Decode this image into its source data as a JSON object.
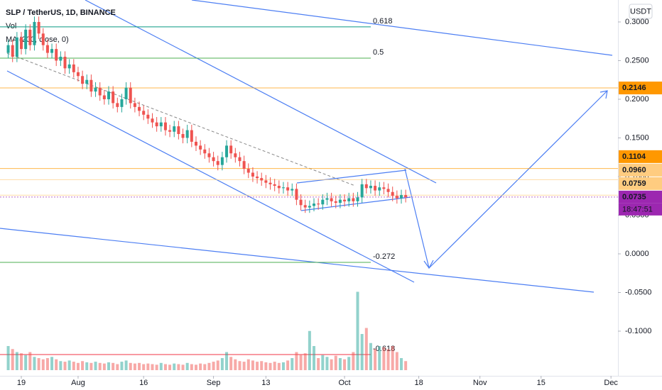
{
  "chart_data": {
    "type": "candlestick",
    "title": "SLP / TetherUS, 1D, BINANCE",
    "indicators": [
      "Vol",
      "MA (200, close, 0)"
    ],
    "currency": "USDT",
    "countdown": "18:47:51",
    "x": [
      -3,
      -2,
      -1,
      0,
      1,
      2,
      3,
      4,
      5,
      6,
      7,
      8,
      9,
      10,
      11,
      12,
      13,
      14,
      15,
      16,
      17,
      18,
      19,
      20,
      21,
      22,
      23,
      24,
      25,
      26,
      27,
      28,
      29,
      30,
      31,
      32,
      33,
      34,
      35,
      36,
      37,
      38,
      39,
      40,
      41,
      42,
      43,
      44,
      45,
      46,
      47,
      48,
      49,
      50,
      51,
      52,
      53,
      54,
      55,
      56,
      57,
      58,
      59,
      60,
      61,
      62,
      63,
      64,
      65,
      66,
      67,
      68,
      69,
      70,
      71,
      72,
      73,
      74,
      75,
      76,
      77,
      78,
      79,
      80,
      81,
      82,
      83,
      84,
      85,
      86,
      87,
      88
    ],
    "open": [
      0.26,
      0.27,
      0.255,
      0.28,
      0.265,
      0.29,
      0.27,
      0.3,
      0.285,
      0.27,
      0.26,
      0.265,
      0.25,
      0.255,
      0.24,
      0.245,
      0.235,
      0.23,
      0.22,
      0.225,
      0.21,
      0.215,
      0.205,
      0.2,
      0.21,
      0.195,
      0.19,
      0.2,
      0.215,
      0.195,
      0.19,
      0.185,
      0.18,
      0.175,
      0.17,
      0.165,
      0.17,
      0.16,
      0.158,
      0.165,
      0.155,
      0.15,
      0.16,
      0.145,
      0.14,
      0.135,
      0.13,
      0.125,
      0.12,
      0.115,
      0.125,
      0.14,
      0.13,
      0.125,
      0.12,
      0.11,
      0.105,
      0.1,
      0.098,
      0.095,
      0.092,
      0.09,
      0.088,
      0.085,
      0.086,
      0.082,
      0.084,
      0.07,
      0.063,
      0.06,
      0.062,
      0.065,
      0.064,
      0.07,
      0.072,
      0.068,
      0.066,
      0.07,
      0.068,
      0.072,
      0.068,
      0.073,
      0.09,
      0.085,
      0.088,
      0.082,
      0.086,
      0.084,
      0.08,
      0.075,
      0.072,
      0.076
    ],
    "high": [
      0.277,
      0.277,
      0.287,
      0.287,
      0.297,
      0.297,
      0.307,
      0.307,
      0.292,
      0.277,
      0.272,
      0.272,
      0.262,
      0.262,
      0.252,
      0.252,
      0.242,
      0.237,
      0.232,
      0.232,
      0.222,
      0.222,
      0.212,
      0.217,
      0.217,
      0.202,
      0.207,
      0.222,
      0.222,
      0.202,
      0.197,
      0.192,
      0.187,
      0.182,
      0.177,
      0.177,
      0.177,
      0.167,
      0.172,
      0.172,
      0.162,
      0.167,
      0.167,
      0.152,
      0.147,
      0.142,
      0.137,
      0.132,
      0.127,
      0.132,
      0.147,
      0.147,
      0.137,
      0.132,
      0.127,
      0.117,
      0.112,
      0.107,
      0.105,
      0.102,
      0.099,
      0.097,
      0.095,
      0.093,
      0.093,
      0.091,
      0.091,
      0.077,
      0.07,
      0.069,
      0.072,
      0.072,
      0.077,
      0.079,
      0.079,
      0.075,
      0.077,
      0.077,
      0.079,
      0.079,
      0.08,
      0.097,
      0.097,
      0.095,
      0.095,
      0.093,
      0.093,
      0.091,
      0.087,
      0.082,
      0.083,
      0.083
    ],
    "low": [
      0.253,
      0.248,
      0.248,
      0.258,
      0.258,
      0.263,
      0.263,
      0.278,
      0.263,
      0.253,
      0.253,
      0.243,
      0.243,
      0.233,
      0.233,
      0.228,
      0.223,
      0.213,
      0.213,
      0.203,
      0.203,
      0.198,
      0.193,
      0.193,
      0.188,
      0.183,
      0.183,
      0.193,
      0.188,
      0.183,
      0.178,
      0.173,
      0.168,
      0.163,
      0.158,
      0.158,
      0.153,
      0.151,
      0.151,
      0.148,
      0.143,
      0.143,
      0.138,
      0.133,
      0.128,
      0.123,
      0.118,
      0.113,
      0.108,
      0.108,
      0.118,
      0.123,
      0.118,
      0.113,
      0.103,
      0.098,
      0.093,
      0.091,
      0.088,
      0.085,
      0.083,
      0.081,
      0.078,
      0.078,
      0.075,
      0.075,
      0.063,
      0.056,
      0.053,
      0.053,
      0.055,
      0.057,
      0.057,
      0.063,
      0.061,
      0.059,
      0.059,
      0.061,
      0.061,
      0.061,
      0.061,
      0.066,
      0.078,
      0.078,
      0.075,
      0.075,
      0.077,
      0.073,
      0.068,
      0.065,
      0.065,
      0.0665
    ],
    "close": [
      0.27,
      0.255,
      0.28,
      0.265,
      0.29,
      0.27,
      0.3,
      0.285,
      0.27,
      0.26,
      0.265,
      0.25,
      0.255,
      0.24,
      0.245,
      0.235,
      0.23,
      0.22,
      0.225,
      0.21,
      0.215,
      0.205,
      0.2,
      0.21,
      0.195,
      0.19,
      0.2,
      0.215,
      0.195,
      0.19,
      0.185,
      0.18,
      0.175,
      0.17,
      0.165,
      0.17,
      0.16,
      0.158,
      0.165,
      0.155,
      0.15,
      0.16,
      0.145,
      0.14,
      0.135,
      0.13,
      0.125,
      0.12,
      0.115,
      0.125,
      0.14,
      0.13,
      0.125,
      0.12,
      0.11,
      0.105,
      0.1,
      0.098,
      0.095,
      0.092,
      0.09,
      0.088,
      0.085,
      0.086,
      0.082,
      0.084,
      0.07,
      0.063,
      0.06,
      0.062,
      0.065,
      0.064,
      0.07,
      0.072,
      0.068,
      0.066,
      0.07,
      0.068,
      0.072,
      0.068,
      0.073,
      0.09,
      0.085,
      0.088,
      0.082,
      0.086,
      0.084,
      0.08,
      0.075,
      0.072,
      0.076,
      0.0735
    ],
    "volume": [
      40,
      35,
      30,
      28,
      25,
      30,
      22,
      20,
      18,
      20,
      22,
      18,
      15,
      14,
      16,
      14,
      12,
      15,
      13,
      12,
      14,
      12,
      11,
      13,
      12,
      10,
      14,
      16,
      12,
      11,
      12,
      10,
      11,
      10,
      9,
      12,
      10,
      9,
      11,
      10,
      9,
      12,
      10,
      9,
      11,
      10,
      12,
      14,
      16,
      20,
      30,
      22,
      18,
      15,
      14,
      18,
      16,
      14,
      15,
      13,
      12,
      14,
      12,
      13,
      16,
      20,
      30,
      25,
      28,
      65,
      40,
      20,
      25,
      22,
      18,
      24,
      20,
      18,
      22,
      30,
      130,
      60,
      70,
      45,
      35,
      40,
      38,
      35,
      40,
      30,
      20,
      15
    ],
    "up_color": "#26a69a",
    "down_color": "#ef5350",
    "xlim": [
      -4.88,
      136.6
    ],
    "xticks": [
      {
        "value": 0,
        "label": "19"
      },
      {
        "value": 13,
        "label": "Aug"
      },
      {
        "value": 28,
        "label": "16"
      },
      {
        "value": 44,
        "label": "Sep"
      },
      {
        "value": 56,
        "label": "13"
      },
      {
        "value": 74,
        "label": "Oct"
      },
      {
        "value": 91,
        "label": "18"
      },
      {
        "value": 105,
        "label": "Nov"
      },
      {
        "value": 119,
        "label": "15"
      },
      {
        "value": 135,
        "label": "Dec"
      }
    ],
    "ylim": [
      -0.1578,
      0.3284
    ],
    "yticks": [
      {
        "value": 0.3,
        "label": "0.3000"
      },
      {
        "value": 0.25,
        "label": "0.2500"
      },
      {
        "value": 0.2,
        "label": "0.2000"
      },
      {
        "value": 0.15,
        "label": "0.1500"
      },
      {
        "value": 0.1,
        "label": "0.1000"
      },
      {
        "value": 0.05,
        "label": "0.0500"
      },
      {
        "value": 0,
        "label": "0.0000"
      },
      {
        "value": -0.05,
        "label": "-0.0500"
      },
      {
        "value": -0.1,
        "label": "-0.1000"
      }
    ],
    "fib_levels": [
      {
        "label": "0.618",
        "price": 0.2936,
        "color": "#089981"
      },
      {
        "label": "0.5",
        "price": 0.2532,
        "color": "#4caf50"
      },
      {
        "label": "-0.272",
        "price": -0.011,
        "color": "#4caf50"
      },
      {
        "label": "-0.618",
        "price": -0.1303,
        "color": "#f23645"
      }
    ],
    "price_lines": [
      {
        "price": 0.2146,
        "color": "#ff9800",
        "text": "#131722"
      },
      {
        "price": 0.1104,
        "color": "#ff9800",
        "text": "#131722"
      },
      {
        "price": {
          "value": 0.096,
          "label": "0.0960"
        },
        "color": "#ffcc80",
        "text": "#131722"
      },
      {
        "price": 0.0759,
        "color": "#ffcc80",
        "text": "#131722"
      },
      {
        "price": 0.0735,
        "color": "#9c27b0",
        "text": "#ffffff"
      }
    ]
  }
}
